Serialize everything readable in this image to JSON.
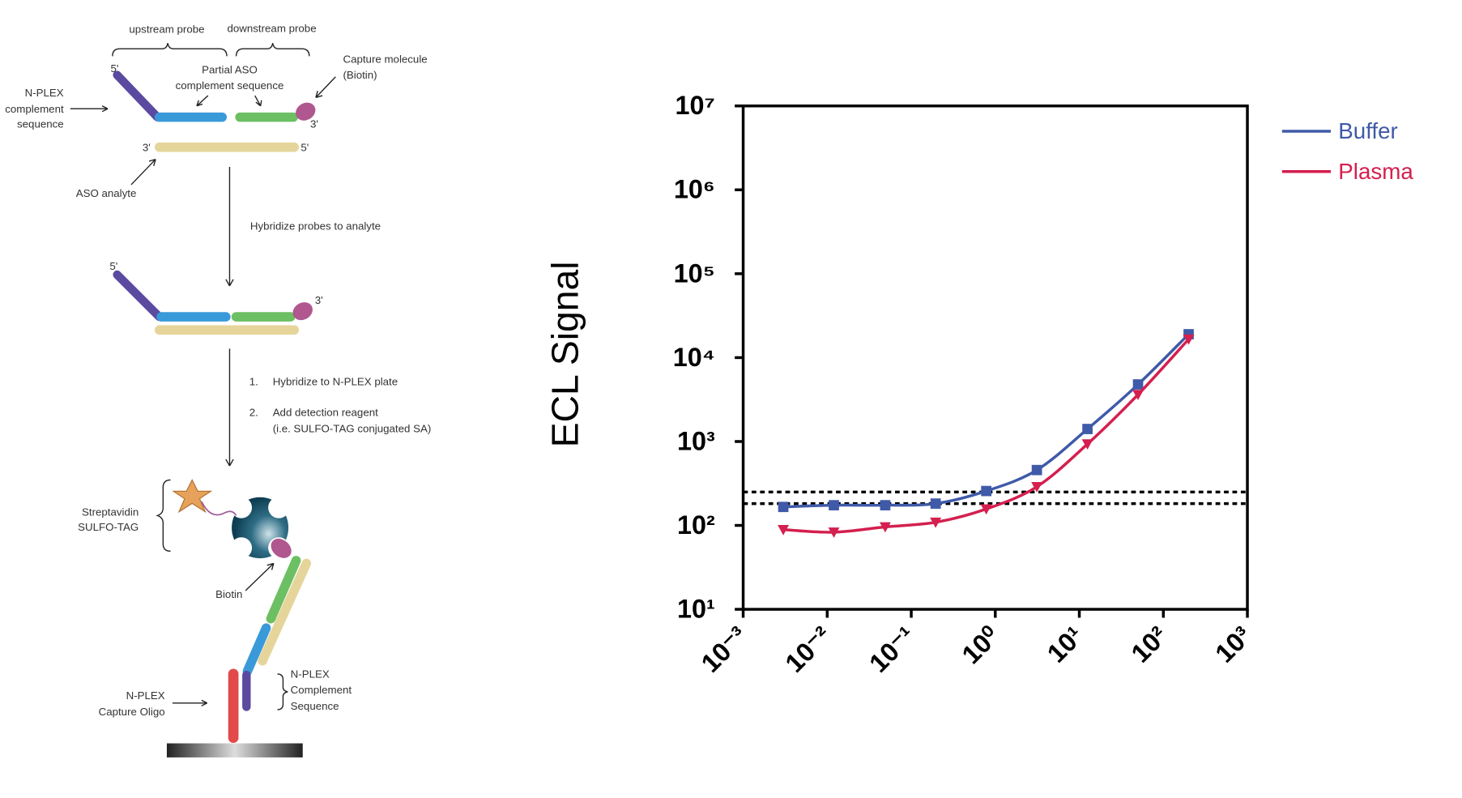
{
  "diagram": {
    "upstream": "upstream probe",
    "downstream": "downstream probe",
    "partial": [
      "Partial ASO",
      "complement sequence"
    ],
    "capture": [
      "Capture molecule",
      "(Biotin)"
    ],
    "nplex_comp": [
      "N-PLEX",
      "complement",
      "sequence"
    ],
    "aso": "ASO analyte",
    "primes": [
      "5'",
      "3'",
      "3'",
      "5'",
      "5'",
      "3'"
    ],
    "step1": "Hybridize probes to analyte",
    "step2": [
      [
        "1.",
        "Hybridize to N-PLEX plate"
      ],
      [
        "2.",
        "Add detection reagent"
      ]
    ],
    "step2_note": "(i.e. SULFO-TAG conjugated SA)",
    "strep": [
      "Streptavidin",
      "SULFO-TAG"
    ],
    "biotin": "Biotin",
    "nplex_comp2": [
      "N-PLEX",
      "Complement",
      "Sequence"
    ],
    "capture_oligo": [
      "N-PLEX",
      "Capture Oligo"
    ]
  },
  "chart_data": {
    "type": "line",
    "y_label": "ECL Signal",
    "xlog": true,
    "ylog": true,
    "xlim": [
      0.001,
      1000
    ],
    "ylim": [
      10,
      10000000
    ],
    "xticks": [
      {
        "value": 0.001,
        "label": "10⁻³"
      },
      {
        "value": 0.01,
        "label": "10⁻²"
      },
      {
        "value": 0.1,
        "label": "10⁻¹"
      },
      {
        "value": 1,
        "label": "10⁰"
      },
      {
        "value": 10,
        "label": "10¹"
      },
      {
        "value": 100,
        "label": "10²"
      },
      {
        "value": 1000,
        "label": "10³"
      }
    ],
    "yticks": [
      {
        "value": 10,
        "label": "10¹"
      },
      {
        "value": 100,
        "label": "10²"
      },
      {
        "value": 1000,
        "label": "10³"
      },
      {
        "value": 10000,
        "label": "10⁴"
      },
      {
        "value": 100000,
        "label": "10⁵"
      },
      {
        "value": 1000000,
        "label": "10⁶"
      },
      {
        "value": 10000000,
        "label": "10⁷"
      }
    ],
    "x": [
      0.003,
      0.012,
      0.049,
      0.195,
      0.781,
      3.125,
      12.5,
      50,
      200
    ],
    "series": [
      {
        "name": "Buffer",
        "color": "#3f5aa8",
        "marker": "square",
        "values": [
          166,
          174,
          174,
          182,
          257,
          457,
          1410,
          4790,
          19000
        ]
      },
      {
        "name": "Plasma",
        "color": "#d41f4f",
        "marker": "triangle-down",
        "values": [
          89,
          83,
          96,
          109,
          157,
          289,
          933,
          3630,
          16600
        ]
      }
    ],
    "threshold_lines": [
      250,
      182
    ],
    "legend": "upper right"
  }
}
